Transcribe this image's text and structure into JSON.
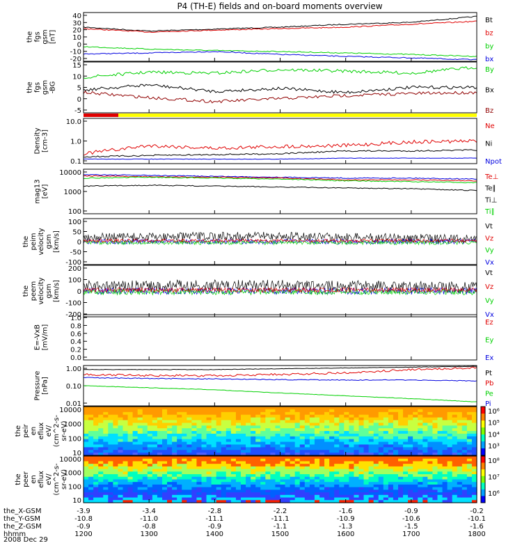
{
  "title": "P4 (TH-E) fields and on-board moments overview",
  "colors": {
    "black": "#000000",
    "red": "#e00000",
    "green": "#00d000",
    "blue": "#0000e0",
    "yellow": "#ffff00",
    "darkred": "#900000"
  },
  "panels": [
    {
      "ylabel": [
        "the",
        "fgs",
        "gsm",
        "[nT]"
      ],
      "ticks": [
        "40",
        "30",
        "20",
        "10",
        "0",
        "-10",
        "-20"
      ],
      "legend": [
        {
          "name": "Bt",
          "color": "black"
        },
        {
          "name": "bz",
          "color": "red"
        },
        {
          "name": "by",
          "color": "green"
        },
        {
          "name": "bx",
          "color": "blue"
        }
      ]
    },
    {
      "ylabel": [
        "the",
        "fgs",
        "gsm",
        "-BG"
      ],
      "ticks": [
        "15",
        "10",
        "5",
        "0",
        "-5"
      ],
      "legend": [
        {
          "name": "By",
          "color": "green"
        },
        {
          "name": "Bx",
          "color": "black"
        },
        {
          "name": "Bz",
          "color": "darkred"
        }
      ]
    },
    {
      "ylabel": [
        "Density",
        "[cm-3]"
      ],
      "ticks": [
        "10.0",
        "1.0",
        "0.1"
      ],
      "legend": [
        {
          "name": "Ne",
          "color": "red"
        },
        {
          "name": "Ni",
          "color": "black"
        },
        {
          "name": "Npot",
          "color": "blue"
        }
      ]
    },
    {
      "ylabel": [
        "mag13",
        "[eV]"
      ],
      "ticks": [
        "10000",
        "1000",
        "100"
      ],
      "legend": [
        {
          "name": "Te⊥",
          "color": "red"
        },
        {
          "name": "Te∥",
          "color": "black"
        },
        {
          "name": "Ti⊥",
          "color": "black"
        },
        {
          "name": "Ti∥",
          "color": "green"
        }
      ]
    },
    {
      "ylabel": [
        "the",
        "peim",
        "velocity",
        "gsm",
        "[km/s]"
      ],
      "ticks": [
        "100",
        "50",
        "0",
        "-50",
        "-100"
      ],
      "legend": [
        {
          "name": "Vt",
          "color": "black"
        },
        {
          "name": "Vz",
          "color": "red"
        },
        {
          "name": "Vy",
          "color": "green"
        },
        {
          "name": "Vx",
          "color": "blue"
        }
      ]
    },
    {
      "ylabel": [
        "the",
        "peem",
        "velocity",
        "gsm",
        "[km/s]"
      ],
      "ticks": [
        "200",
        "100",
        "0",
        "-100",
        "-200"
      ],
      "legend": [
        {
          "name": "Vt",
          "color": "black"
        },
        {
          "name": "Vz",
          "color": "red"
        },
        {
          "name": "Vy",
          "color": "green"
        },
        {
          "name": "Vx",
          "color": "blue"
        }
      ]
    },
    {
      "ylabel": [
        "E=-VxB",
        "[mV/m]"
      ],
      "ticks": [
        "1.0",
        "0.8",
        "0.6",
        "0.4",
        "0.2",
        "0.0"
      ],
      "legend": [
        {
          "name": "Ez",
          "color": "red"
        },
        {
          "name": "Ey",
          "color": "green"
        },
        {
          "name": "Ex",
          "color": "blue"
        }
      ]
    },
    {
      "ylabel": [
        "Pressure",
        "[nPa]"
      ],
      "ticks": [
        "1.00",
        "0.10",
        "0.01"
      ],
      "legend": [
        {
          "name": "Pt",
          "color": "black"
        },
        {
          "name": "Pb",
          "color": "red"
        },
        {
          "name": "Pe",
          "color": "green"
        },
        {
          "name": "Pi",
          "color": "blue"
        }
      ]
    },
    {
      "ylabel": [
        "the",
        "peir",
        "en",
        "eflux",
        "eV/",
        "(cm^2-s-",
        "sr-eV)"
      ],
      "ticks": [
        "10000",
        "1000",
        "100",
        "10"
      ],
      "colorbar": [
        "10⁶",
        "10⁵",
        "10⁴",
        "10³"
      ]
    },
    {
      "ylabel": [
        "the",
        "peer",
        "en",
        "eflux",
        "eV/",
        "(cm^2-s-",
        "sr-eV)"
      ],
      "ticks": [
        "10000",
        "1000",
        "100",
        "10"
      ],
      "colorbar": [
        "10⁸",
        "10⁷",
        "10⁶"
      ]
    }
  ],
  "xaxis": {
    "rows": [
      {
        "label": "the_X-GSM",
        "values": [
          "-3.9",
          "-3.4",
          "-2.8",
          "-2.2",
          "-1.6",
          "-0.9",
          "-0.2"
        ]
      },
      {
        "label": "the_Y-GSM",
        "values": [
          "-10.8",
          "-11.0",
          "-11.1",
          "-11.1",
          "-10.9",
          "-10.6",
          "-10.1"
        ]
      },
      {
        "label": "the_Z-GSM",
        "values": [
          "-0.9",
          "-0.8",
          "-0.9",
          "-1.1",
          "-1.3",
          "-1.5",
          "-1.6"
        ]
      },
      {
        "label": "hhmm",
        "values": [
          "1200",
          "1300",
          "1400",
          "1500",
          "1600",
          "1700",
          "1800"
        ]
      }
    ],
    "date": "2008 Dec 29"
  },
  "chart_data": {
    "type": "line",
    "title": "P4 (TH-E) fields and on-board moments overview",
    "x": [
      "1200",
      "1300",
      "1400",
      "1500",
      "1600",
      "1700",
      "1800"
    ],
    "series": [
      {
        "name": "Bt",
        "values": [
          23,
          20,
          22,
          25,
          28,
          31,
          37
        ]
      },
      {
        "name": "bz",
        "values": [
          21,
          18,
          19,
          22,
          25,
          28,
          31
        ]
      },
      {
        "name": "by",
        "values": [
          2,
          0,
          -2,
          -4,
          -6,
          -8,
          -10
        ]
      },
      {
        "name": "bx",
        "values": [
          -9,
          -8,
          -6,
          -8,
          -10,
          -12,
          -14
        ]
      },
      {
        "name": "Ne",
        "values": [
          0.25,
          0.6,
          0.5,
          0.45,
          0.7,
          0.85,
          0.9
        ]
      },
      {
        "name": "Ni",
        "values": [
          0.2,
          0.22,
          0.22,
          0.25,
          0.3,
          0.3,
          0.3
        ]
      },
      {
        "name": "Pt",
        "values": [
          0.45,
          0.45,
          0.5,
          0.55,
          0.6,
          0.65,
          0.7
        ]
      },
      {
        "name": "Pb",
        "values": [
          0.25,
          0.22,
          0.2,
          0.3,
          0.4,
          0.55,
          0.6
        ]
      },
      {
        "name": "Pe",
        "values": [
          0.07,
          0.06,
          0.05,
          0.04,
          0.03,
          0.025,
          0.02
        ]
      },
      {
        "name": "Pi",
        "values": [
          0.2,
          0.18,
          0.15,
          0.14,
          0.13,
          0.12,
          0.11
        ]
      }
    ]
  }
}
